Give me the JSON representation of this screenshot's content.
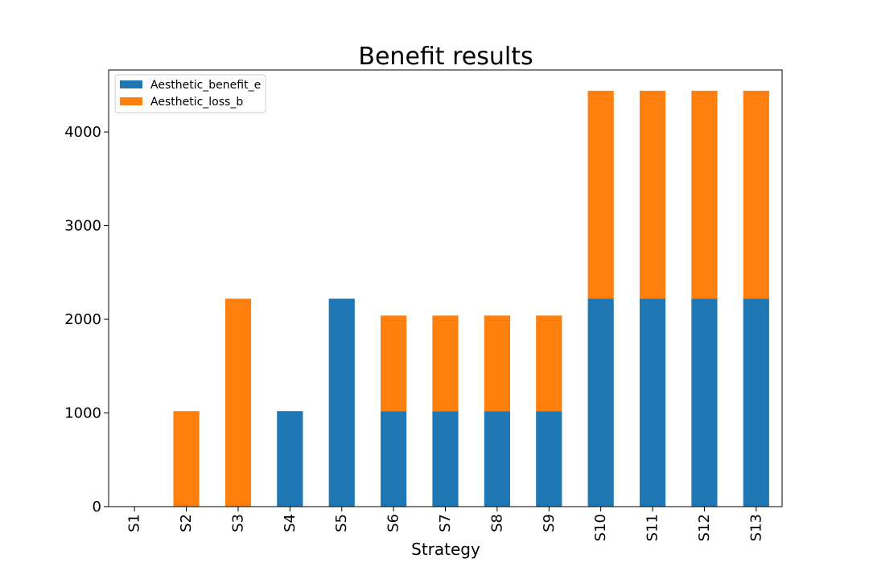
{
  "chart_data": {
    "type": "bar",
    "stacked": true,
    "title": "Benefit results",
    "xlabel": "Strategy",
    "ylabel": "",
    "categories": [
      "S1",
      "S2",
      "S3",
      "S4",
      "S5",
      "S6",
      "S7",
      "S8",
      "S9",
      "S10",
      "S11",
      "S12",
      "S13"
    ],
    "series": [
      {
        "name": "Aesthetic_benefit_e",
        "color": "#1f77b4",
        "values": [
          0,
          0,
          0,
          1020,
          2220,
          1020,
          1020,
          1020,
          1020,
          2220,
          2220,
          2220,
          2220
        ]
      },
      {
        "name": "Aesthetic_loss_b",
        "color": "#ff7f0e",
        "values": [
          0,
          1020,
          2220,
          0,
          0,
          1020,
          1020,
          1020,
          1020,
          2220,
          2220,
          2220,
          2220
        ]
      }
    ],
    "ylim": [
      0,
      4662
    ],
    "yticks": [
      0,
      1000,
      2000,
      3000,
      4000
    ],
    "grid": false,
    "legend_position": "top-left"
  }
}
